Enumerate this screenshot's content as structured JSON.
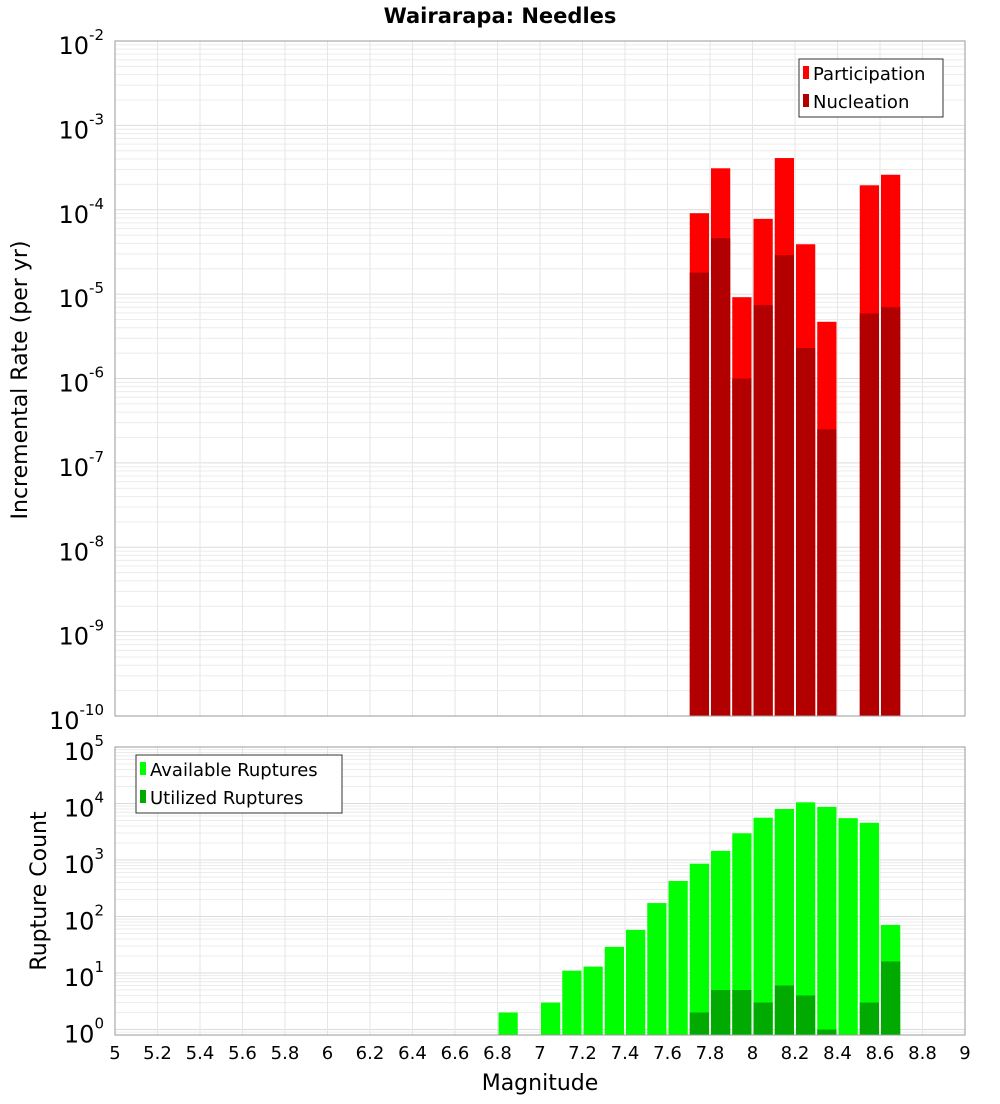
{
  "chart_data": [
    {
      "type": "bar",
      "title": "Wairarapa: Needles",
      "xlabel": "Magnitude",
      "ylabel": "Incremental Rate (per yr)",
      "yscale": "log",
      "xlim": [
        5,
        9
      ],
      "ylim": [
        1e-10,
        0.01
      ],
      "bin_width": 0.1,
      "grid": true,
      "legend_position": "top-right",
      "x": [
        7.75,
        7.85,
        7.95,
        8.05,
        8.15,
        8.25,
        8.35,
        8.55,
        8.65
      ],
      "series": [
        {
          "name": "Participation",
          "color": "#ff0000",
          "values": [
            9.1e-05,
            0.00031,
            9.2e-06,
            7.8e-05,
            0.00041,
            3.9e-05,
            4.7e-06,
            0.000195,
            0.00026
          ]
        },
        {
          "name": "Nucleation",
          "color": "#b20000",
          "values": [
            1.8e-05,
            4.6e-05,
            1e-06,
            7.4e-06,
            2.9e-05,
            2.3e-06,
            2.5e-07,
            5.9e-06,
            7e-06
          ]
        }
      ],
      "yticks": [
        {
          "base": "10",
          "exp": "-10",
          "value": 1e-10
        },
        {
          "base": "10",
          "exp": "-9",
          "value": 1e-09
        },
        {
          "base": "10",
          "exp": "-8",
          "value": 1e-08
        },
        {
          "base": "10",
          "exp": "-7",
          "value": 1e-07
        },
        {
          "base": "10",
          "exp": "-6",
          "value": 1e-06
        },
        {
          "base": "10",
          "exp": "-5",
          "value": 1e-05
        },
        {
          "base": "10",
          "exp": "-4",
          "value": 0.0001
        },
        {
          "base": "10",
          "exp": "-3",
          "value": 0.001
        },
        {
          "base": "10",
          "exp": "-2",
          "value": 0.01
        }
      ]
    },
    {
      "type": "bar",
      "xlabel": "Magnitude",
      "ylabel": "Rupture Count",
      "yscale": "log",
      "xlim": [
        5,
        9
      ],
      "ylim": [
        0.8,
        100000.0
      ],
      "bin_width": 0.1,
      "grid": true,
      "legend_position": "top-left",
      "series": [
        {
          "name": "Available Ruptures",
          "color": "#00ff00",
          "x": [
            6.85,
            7.05,
            7.15,
            7.25,
            7.35,
            7.45,
            7.55,
            7.65,
            7.75,
            7.85,
            7.95,
            8.05,
            8.15,
            8.25,
            8.35,
            8.45,
            8.55,
            8.65
          ],
          "values": [
            2,
            3,
            11,
            13,
            29,
            58,
            173,
            425,
            860,
            1450,
            2970,
            5600,
            8000,
            10500,
            8700,
            5500,
            4550,
            71
          ]
        },
        {
          "name": "Utilized Ruptures",
          "color": "#00aa00",
          "x": [
            7.75,
            7.85,
            7.95,
            8.05,
            8.15,
            8.25,
            8.35,
            8.55,
            8.65
          ],
          "values": [
            2,
            5,
            5,
            3,
            6,
            4,
            1,
            3,
            16
          ]
        }
      ],
      "yticks": [
        {
          "base": "10",
          "exp": "0",
          "value": 1
        },
        {
          "base": "10",
          "exp": "1",
          "value": 10
        },
        {
          "base": "10",
          "exp": "2",
          "value": 100
        },
        {
          "base": "10",
          "exp": "3",
          "value": 1000
        },
        {
          "base": "10",
          "exp": "4",
          "value": 10000
        },
        {
          "base": "10",
          "exp": "5",
          "value": 100000
        }
      ]
    }
  ],
  "xticks": [
    "5",
    "5.2",
    "5.4",
    "5.6",
    "5.8",
    "6",
    "6.2",
    "6.4",
    "6.6",
    "6.8",
    "7",
    "7.2",
    "7.4",
    "7.6",
    "7.8",
    "8",
    "8.2",
    "8.4",
    "8.6",
    "8.8",
    "9"
  ]
}
